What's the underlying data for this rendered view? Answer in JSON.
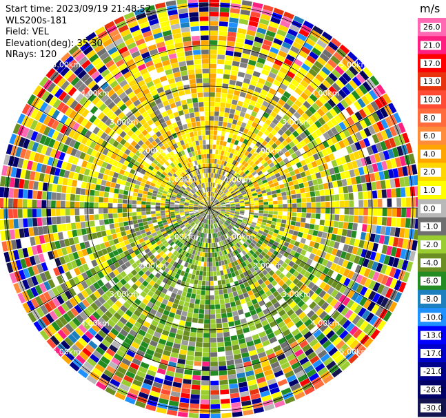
{
  "header": {
    "start_time": "Start time: 2023/09/19 21:48:52",
    "site": "WLS200s-181",
    "field": "Field: VEL",
    "elevation": "Elevation(deg): 35.30",
    "nrays": "NRays: 120"
  },
  "chart_data": {
    "type": "ppi",
    "field": "VEL",
    "units": "m/s",
    "nrays": 120,
    "range_rings_km": [
      "1.00km",
      "2.00km",
      "3.00km",
      "4.00km",
      "5.00km"
    ],
    "colorbar": {
      "unit_label": "m/s",
      "tick_labels": [
        "26.0",
        "21.0",
        "17.0",
        "13.0",
        "10.0",
        "8.0",
        "6.0",
        "4.0",
        "2.0",
        "1.0",
        "0.0",
        "-1.0",
        "-2.0",
        "-4.0",
        "-6.0",
        "-8.0",
        "-10.0",
        "-13.0",
        "-17.0",
        "-21.0",
        "-26.0",
        "-30.0"
      ],
      "colors": [
        "#ff69b4",
        "#ff1f80",
        "#ff0000",
        "#e8330f",
        "#ff4b33",
        "#ff6b3b",
        "#ff8c3a",
        "#ffa500",
        "#ffd700",
        "#ffff00",
        "#b8b8b8",
        "#6f6f6f",
        "#9acd32",
        "#6b8e23",
        "#228b22",
        "#1e7fbf",
        "#1e90ff",
        "#0000ff",
        "#0000cd",
        "#00008b",
        "#000066",
        "#141450"
      ]
    }
  }
}
